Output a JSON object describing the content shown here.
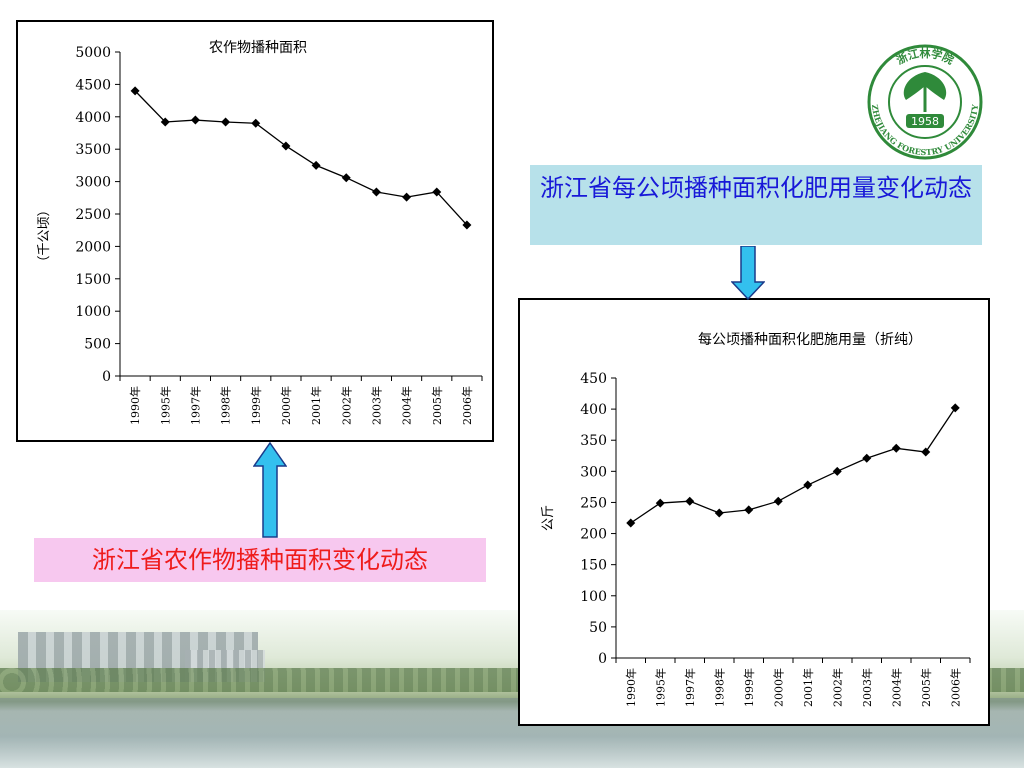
{
  "colors": {
    "callout_fert_bg": "#b7e1ea",
    "callout_fert_text": "#1818d8",
    "callout_area_bg": "#f7c8ef",
    "callout_area_text": "#ef1b1b",
    "arrow_fill": "#33c0ee",
    "logo_green": "#2f8a3a"
  },
  "callouts": {
    "fertilizer": "浙江省每公顷播种面积化肥用量变化动态",
    "area": "浙江省农作物播种面积变化动态"
  },
  "logo": {
    "top_text": "浙江林学院",
    "year": "1958",
    "bottom_text": "ZHEJIANG FORESTRY UNIVERSITY"
  },
  "chart_data": [
    {
      "type": "line",
      "title": "农作物播种面积",
      "ylabel": "（千公顷）",
      "xlabel": "",
      "categories": [
        "1990年",
        "1995年",
        "1997年",
        "1998年",
        "1999年",
        "2000年",
        "2001年",
        "2002年",
        "2003年",
        "2004年",
        "2005年",
        "2006年"
      ],
      "series": [
        {
          "values": [
            4400,
            3920,
            3950,
            3920,
            3900,
            3550,
            3250,
            3060,
            2840,
            2760,
            2840,
            2330
          ]
        }
      ],
      "ylim": [
        0,
        5000
      ],
      "yticks": [
        "0",
        "500",
        "1000",
        "1500",
        "2000",
        "2500",
        "3000",
        "3500",
        "4000",
        "4500",
        "5000"
      ],
      "grid": false,
      "legend": "none"
    },
    {
      "type": "line",
      "title": "每公顷播种面积化肥施用量（折纯）",
      "ylabel": "公斤",
      "xlabel": "",
      "categories": [
        "1990年",
        "1995年",
        "1997年",
        "1998年",
        "1999年",
        "2000年",
        "2001年",
        "2002年",
        "2003年",
        "2004年",
        "2005年",
        "2006年"
      ],
      "series": [
        {
          "values": [
            217,
            249,
            252,
            233,
            238,
            252,
            278,
            300,
            321,
            337,
            331,
            402
          ]
        }
      ],
      "ylim": [
        0,
        450
      ],
      "yticks": [
        "0",
        "50",
        "100",
        "150",
        "200",
        "250",
        "300",
        "350",
        "400",
        "450"
      ],
      "grid": false,
      "legend": "none"
    }
  ]
}
